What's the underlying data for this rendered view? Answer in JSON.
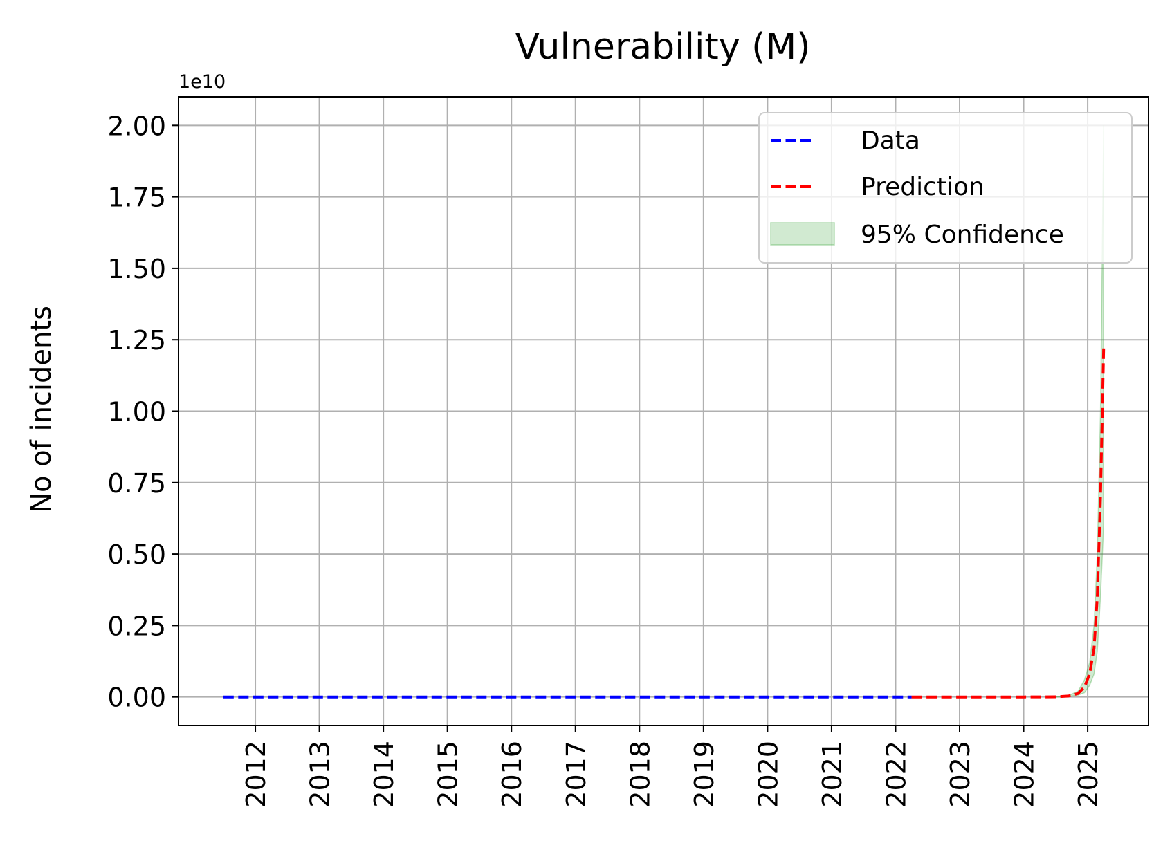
{
  "chart_data": {
    "type": "line",
    "title": "Vulnerability (M)",
    "xlabel": "",
    "ylabel": "No of incidents",
    "y_offset_label": "1e10",
    "xlim": [
      2010.8,
      2025.95
    ],
    "ylim": [
      -1000000000.0,
      21000000000.0
    ],
    "grid": true,
    "legend_position": "top-right",
    "x_ticks": [
      2012,
      2013,
      2014,
      2015,
      2016,
      2017,
      2018,
      2019,
      2020,
      2021,
      2022,
      2023,
      2024,
      2025
    ],
    "y_ticks": [
      0,
      2500000000.0,
      5000000000.0,
      7500000000.0,
      10000000000.0,
      12500000000.0,
      15000000000.0,
      17500000000.0,
      20000000000.0
    ],
    "y_tick_labels": [
      "0.00",
      "0.25",
      "0.50",
      "0.75",
      "1.00",
      "1.25",
      "1.50",
      "1.75",
      "2.00"
    ],
    "series": [
      {
        "name": "Data",
        "color": "#0000ff",
        "style": "dashed",
        "x": [
          2011.5,
          2012.0,
          2013.0,
          2014.0,
          2015.0,
          2016.0,
          2017.0,
          2018.0,
          2019.0,
          2020.0,
          2021.0,
          2022.0,
          2022.25
        ],
        "y": [
          0,
          0,
          0,
          0,
          0,
          0,
          0,
          0,
          0,
          0,
          0,
          0,
          0
        ]
      },
      {
        "name": "Prediction",
        "color": "#ff0000",
        "style": "dashed",
        "x": [
          2022.25,
          2023.0,
          2024.0,
          2024.5,
          2024.7,
          2024.85,
          2024.95,
          2025.03,
          2025.1,
          2025.15,
          2025.2,
          2025.25
        ],
        "y": [
          0,
          0,
          0,
          5000000.0,
          30000000.0,
          120000000.0,
          350000000.0,
          800000000.0,
          1700000000.0,
          3500000000.0,
          7000000000.0,
          12200000000.0
        ]
      },
      {
        "name": "95% Confidence",
        "type": "band",
        "color": "#2ca02c",
        "opacity": 0.22,
        "x": [
          2024.5,
          2024.7,
          2024.85,
          2024.95,
          2025.03,
          2025.1,
          2025.15,
          2025.2,
          2025.25
        ],
        "lower": [
          0,
          15000000.0,
          60000000.0,
          150000000.0,
          400000000.0,
          800000000.0,
          1600000000.0,
          3500000000.0,
          6000000000.0
        ],
        "upper": [
          10000000.0,
          50000000.0,
          200000000.0,
          600000000.0,
          1200000000.0,
          2500000000.0,
          5000000000.0,
          10000000000.0,
          20000000000.0
        ]
      }
    ],
    "legend": [
      {
        "label": "Data",
        "color": "#0000ff",
        "kind": "line"
      },
      {
        "label": "Prediction",
        "color": "#ff0000",
        "kind": "line"
      },
      {
        "label": "95% Confidence",
        "color": "#2ca02c",
        "kind": "patch"
      }
    ]
  }
}
